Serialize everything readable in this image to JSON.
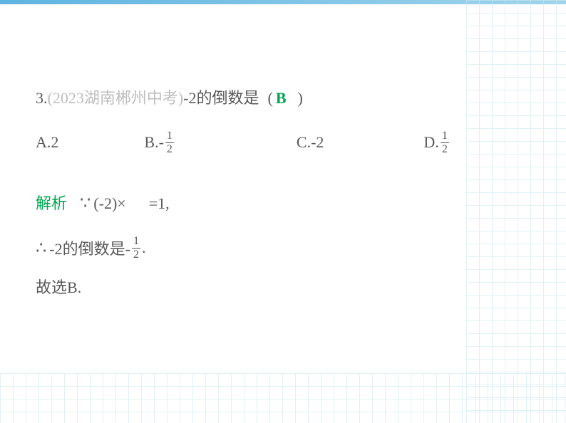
{
  "question": {
    "number": "3.",
    "source": "(2023湖南郴州中考)",
    "text": "-2的倒数是",
    "paren_open": "(",
    "paren_close": ")",
    "answer": "B"
  },
  "options": {
    "a": {
      "label": "A.",
      "value": "2"
    },
    "b": {
      "label": "B.",
      "neg": "-",
      "num": "1",
      "den": "2"
    },
    "c": {
      "label": "C.",
      "value": "-2"
    },
    "d": {
      "label": "D.",
      "num": "1",
      "den": "2"
    }
  },
  "explanation": {
    "label": "解析",
    "because": "∵",
    "calc_left": "(-2)×",
    "calc_right": "=1,",
    "therefore": "∴",
    "conclusion_pre": "-2的倒数是-",
    "conclusion_num": "1",
    "conclusion_den": "2",
    "conclusion_post": ".",
    "final": "故选B."
  },
  "colors": {
    "text": "#595959",
    "source": "#bfbfbf",
    "answer": "#00a651",
    "border_top": "#5eb4e0",
    "grid": "#d0e8f0",
    "background": "#ffffff"
  },
  "fonts": {
    "body_size": 22,
    "fraction_size": 16
  }
}
